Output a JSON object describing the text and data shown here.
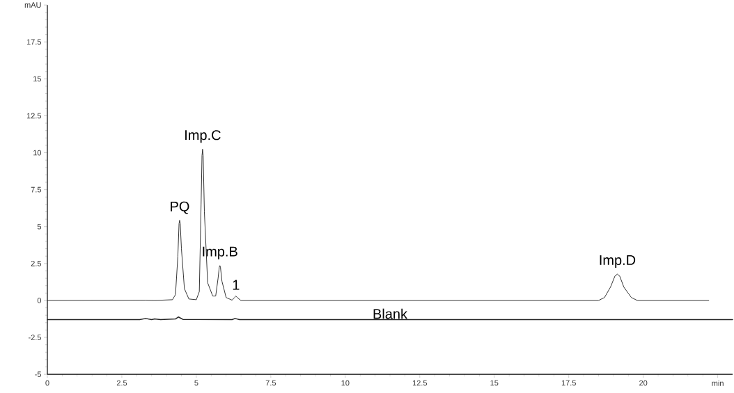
{
  "chart_data": {
    "type": "line",
    "xlim": [
      0,
      23
    ],
    "ylim": [
      -5,
      20
    ],
    "xticks": [
      0,
      2.5,
      5,
      7.5,
      10,
      12.5,
      15,
      17.5,
      20,
      {
        "value": 22.5,
        "label": "min"
      }
    ],
    "yticks": [
      -5,
      -2.5,
      0,
      2.5,
      5,
      7.5,
      10,
      12.5,
      15,
      17.5,
      {
        "value": 20,
        "label": "mAU"
      }
    ],
    "marker": "none",
    "line_style": "solid",
    "grid": false,
    "legend": false,
    "series": [
      {
        "color": "#333333",
        "x": [
          0,
          3.3,
          3.6,
          4.2,
          4.3,
          4.38,
          4.42,
          4.44,
          4.46,
          4.5,
          4.6,
          4.75,
          5.0,
          5.1,
          5.16,
          5.19,
          5.21,
          5.23,
          5.27,
          5.38,
          5.55,
          5.65,
          5.73,
          5.77,
          5.79,
          5.81,
          5.86,
          6.0,
          6.2,
          6.28,
          6.33,
          6.4,
          6.5,
          18.5,
          18.7,
          18.9,
          19.05,
          19.13,
          19.21,
          19.35,
          19.6,
          19.8,
          22.2
        ],
        "values": [
          0,
          0.02,
          0,
          0.05,
          0.4,
          3.0,
          5.2,
          5.43,
          5.2,
          3.5,
          0.8,
          0.1,
          0.05,
          0.6,
          6.5,
          9.8,
          10.24,
          9.8,
          6.0,
          1.2,
          0.3,
          0.3,
          1.5,
          2.25,
          2.36,
          2.25,
          1.3,
          0.2,
          0.02,
          0.2,
          0.3,
          0.15,
          0,
          0,
          0.2,
          0.9,
          1.65,
          1.78,
          1.65,
          0.9,
          0.2,
          0,
          0
        ]
      },
      {
        "name": "Blank",
        "color": "#222222",
        "x": [
          0,
          3.1,
          3.3,
          3.5,
          3.6,
          3.8,
          4.3,
          4.4,
          4.55,
          6.2,
          6.3,
          6.45,
          23
        ],
        "values": [
          -1.3,
          -1.3,
          -1.22,
          -1.3,
          -1.25,
          -1.3,
          -1.25,
          -1.12,
          -1.28,
          -1.3,
          -1.22,
          -1.3,
          -1.3
        ]
      }
    ],
    "annotations": [
      {
        "text": "PQ",
        "x": 4.44,
        "y": 5.43
      },
      {
        "text": "Imp.C",
        "x": 5.21,
        "y": 10.24
      },
      {
        "text": "Imp.B",
        "x": 5.79,
        "y": 2.36
      },
      {
        "text": "1",
        "x": 6.33,
        "y": 0.3
      },
      {
        "text": "Imp.D",
        "x": 19.13,
        "y": 1.78
      }
    ]
  }
}
